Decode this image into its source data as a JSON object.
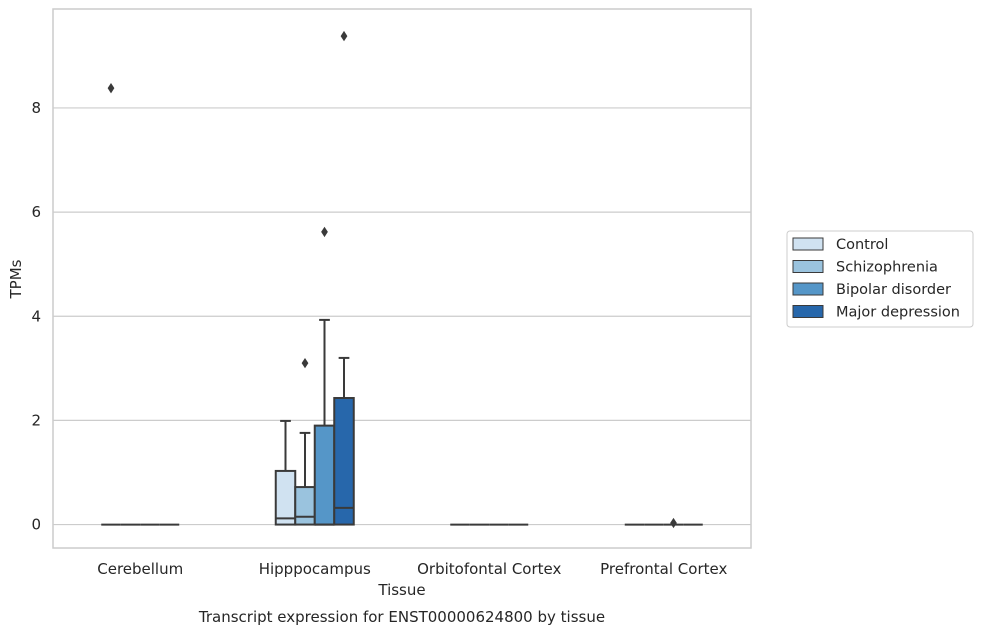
{
  "chart_data": {
    "type": "boxplot",
    "title": "Transcript expression for ENST00000624800 by tissue",
    "xlabel": "Tissue",
    "ylabel": "TPMs",
    "ylim": [
      -0.45,
      9.9
    ],
    "yticks": [
      0,
      2,
      4,
      6,
      8
    ],
    "grid": true,
    "legend_position": "right",
    "categories": [
      "Cerebellum",
      "Hipppocampus",
      "Orbitofontal Cortex",
      "Prefrontal Cortex"
    ],
    "series": [
      {
        "name": "Control",
        "color": "#d0e2f1",
        "boxes": [
          {
            "category": "Cerebellum",
            "whisker_low": 0,
            "q1": 0,
            "median": 0,
            "q3": 0,
            "whisker_high": 0,
            "outliers": [
              8.38
            ]
          },
          {
            "category": "Hipppocampus",
            "whisker_low": 0,
            "q1": 0,
            "median": 0.12,
            "q3": 1.03,
            "whisker_high": 1.99,
            "outliers": []
          },
          {
            "category": "Orbitofontal Cortex",
            "whisker_low": 0,
            "q1": 0,
            "median": 0,
            "q3": 0,
            "whisker_high": 0,
            "outliers": []
          },
          {
            "category": "Prefrontal Cortex",
            "whisker_low": 0,
            "q1": 0,
            "median": 0,
            "q3": 0,
            "whisker_high": 0,
            "outliers": []
          }
        ]
      },
      {
        "name": "Schizophrenia",
        "color": "#9ac3de",
        "boxes": [
          {
            "category": "Cerebellum",
            "whisker_low": 0,
            "q1": 0,
            "median": 0,
            "q3": 0,
            "whisker_high": 0,
            "outliers": []
          },
          {
            "category": "Hipppocampus",
            "whisker_low": 0,
            "q1": 0,
            "median": 0.15,
            "q3": 0.72,
            "whisker_high": 1.76,
            "outliers": [
              3.1
            ]
          },
          {
            "category": "Orbitofontal Cortex",
            "whisker_low": 0,
            "q1": 0,
            "median": 0,
            "q3": 0,
            "whisker_high": 0,
            "outliers": []
          },
          {
            "category": "Prefrontal Cortex",
            "whisker_low": 0,
            "q1": 0,
            "median": 0,
            "q3": 0,
            "whisker_high": 0,
            "outliers": []
          }
        ]
      },
      {
        "name": "Bipolar disorder",
        "color": "#5596c8",
        "boxes": [
          {
            "category": "Cerebellum",
            "whisker_low": 0,
            "q1": 0,
            "median": 0,
            "q3": 0,
            "whisker_high": 0,
            "outliers": []
          },
          {
            "category": "Hipppocampus",
            "whisker_low": 0,
            "q1": 0,
            "median": 0,
            "q3": 1.9,
            "whisker_high": 3.93,
            "outliers": [
              5.62
            ]
          },
          {
            "category": "Orbitofontal Cortex",
            "whisker_low": 0,
            "q1": 0,
            "median": 0,
            "q3": 0,
            "whisker_high": 0,
            "outliers": []
          },
          {
            "category": "Prefrontal Cortex",
            "whisker_low": 0,
            "q1": 0,
            "median": 0,
            "q3": 0,
            "whisker_high": 0,
            "outliers": [
              0.03
            ]
          }
        ]
      },
      {
        "name": "Major depression",
        "color": "#2767ab",
        "boxes": [
          {
            "category": "Cerebellum",
            "whisker_low": 0,
            "q1": 0,
            "median": 0,
            "q3": 0,
            "whisker_high": 0,
            "outliers": []
          },
          {
            "category": "Hipppocampus",
            "whisker_low": 0,
            "q1": 0,
            "median": 0.32,
            "q3": 2.43,
            "whisker_high": 3.2,
            "outliers": [
              9.38
            ]
          },
          {
            "category": "Orbitofontal Cortex",
            "whisker_low": 0,
            "q1": 0,
            "median": 0,
            "q3": 0,
            "whisker_high": 0,
            "outliers": []
          },
          {
            "category": "Prefrontal Cortex",
            "whisker_low": 0,
            "q1": 0,
            "median": 0,
            "q3": 0,
            "whisker_high": 0,
            "outliers": []
          }
        ]
      }
    ]
  }
}
